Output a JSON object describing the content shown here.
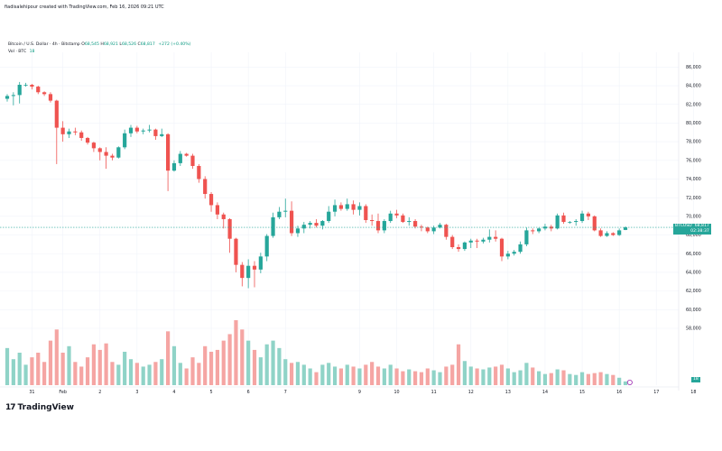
{
  "header": "fiadisalehipour created with TradingView.com, Feb 16, 2026 09:21 UTC",
  "legend": {
    "symbol": "Bitcoin / U.S. Dollar · 4h · Bitstamp",
    "o_label": "O",
    "o": "68,545",
    "h_label": "H",
    "h": "68,921",
    "l_label": "L",
    "l": "68,526",
    "c_label": "C",
    "c": "68,817",
    "change": "+272 (+0.40%)",
    "vol_label": "Vol · BTC",
    "vol_value": "18"
  },
  "price_label": {
    "symbol": "BTCUSD",
    "price": "68,817",
    "countdown": "02:38:37"
  },
  "volume_label": "18",
  "logo_text": "TradingView",
  "colors": {
    "up": "#26a69a",
    "down": "#ef5350",
    "up_vol": "#8fd3c7",
    "down_vol": "#f5a5a3",
    "grid": "#f0f3fa",
    "price_line": "#26a69a"
  },
  "chart_data": {
    "type": "candlestick",
    "ylim": [
      58000,
      87000
    ],
    "yticks": [
      "86,000",
      "84,000",
      "82,000",
      "80,000",
      "78,000",
      "76,000",
      "74,000",
      "72,000",
      "70,000",
      "68,000",
      "66,000",
      "64,000",
      "62,000",
      "60,000",
      "58,000"
    ],
    "ytick_values": [
      86000,
      84000,
      82000,
      80000,
      78000,
      76000,
      74000,
      72000,
      70000,
      68000,
      66000,
      64000,
      62000,
      60000,
      58000
    ],
    "xticks": [
      {
        "label": "31",
        "index": 4
      },
      {
        "label": "Feb",
        "index": 9
      },
      {
        "label": "2",
        "index": 15
      },
      {
        "label": "3",
        "index": 21
      },
      {
        "label": "4",
        "index": 27
      },
      {
        "label": "5",
        "index": 33
      },
      {
        "label": "6",
        "index": 39
      },
      {
        "label": "7",
        "index": 45
      },
      {
        "label": "9",
        "index": 57
      },
      {
        "label": "10",
        "index": 63
      },
      {
        "label": "11",
        "index": 69
      },
      {
        "label": "12",
        "index": 75
      },
      {
        "label": "13",
        "index": 81
      },
      {
        "label": "14",
        "index": 87
      },
      {
        "label": "15",
        "index": 93
      },
      {
        "label": "16",
        "index": 99
      },
      {
        "label": "17",
        "index": 105
      },
      {
        "label": "18",
        "index": 111
      }
    ],
    "candles": [
      [
        82600,
        83100,
        82300,
        82900,
        40
      ],
      [
        82900,
        83300,
        81900,
        83000,
        28
      ],
      [
        83000,
        84400,
        82100,
        84100,
        35
      ],
      [
        84100,
        84300,
        83900,
        84100,
        22
      ],
      [
        84100,
        84200,
        83600,
        83900,
        30
      ],
      [
        83900,
        84000,
        83100,
        83300,
        35
      ],
      [
        83300,
        83400,
        82900,
        83100,
        25
      ],
      [
        83100,
        83300,
        82200,
        82400,
        48
      ],
      [
        82400,
        82500,
        75600,
        79500,
        60
      ],
      [
        79500,
        80200,
        78000,
        78800,
        35
      ],
      [
        78800,
        79400,
        78400,
        79100,
        42
      ],
      [
        79100,
        79500,
        78700,
        79000,
        25
      ],
      [
        79000,
        79200,
        78100,
        78400,
        20
      ],
      [
        78400,
        78500,
        77700,
        77900,
        30
      ],
      [
        77900,
        78000,
        76900,
        77300,
        44
      ],
      [
        77300,
        77400,
        76000,
        76900,
        38
      ],
      [
        76900,
        77400,
        75100,
        76500,
        45
      ],
      [
        76500,
        76700,
        76000,
        76300,
        25
      ],
      [
        76300,
        77500,
        76200,
        77400,
        22
      ],
      [
        77400,
        79300,
        77200,
        78900,
        36
      ],
      [
        78900,
        79800,
        78500,
        79500,
        28
      ],
      [
        79500,
        79700,
        78900,
        79100,
        24
      ],
      [
        79100,
        79400,
        78800,
        79200,
        20
      ],
      [
        79200,
        79800,
        79000,
        79300,
        22
      ],
      [
        79300,
        79400,
        78200,
        78600,
        25
      ],
      [
        78600,
        79400,
        78500,
        78800,
        28
      ],
      [
        78800,
        78900,
        72700,
        74900,
        58
      ],
      [
        74900,
        76000,
        74800,
        75700,
        42
      ],
      [
        75700,
        77000,
        75400,
        76700,
        24
      ],
      [
        76700,
        76800,
        76400,
        76500,
        18
      ],
      [
        76500,
        76700,
        75100,
        75400,
        30
      ],
      [
        75400,
        75600,
        73600,
        74000,
        24
      ],
      [
        74000,
        74300,
        71900,
        72400,
        42
      ],
      [
        72400,
        72600,
        70500,
        71200,
        36
      ],
      [
        71200,
        71500,
        69700,
        70200,
        38
      ],
      [
        70200,
        70400,
        68700,
        69700,
        48
      ],
      [
        69700,
        69800,
        66100,
        67600,
        55
      ],
      [
        67600,
        67700,
        64000,
        64800,
        70
      ],
      [
        64800,
        65100,
        62500,
        63400,
        60
      ],
      [
        63400,
        65400,
        62300,
        64700,
        48
      ],
      [
        64700,
        65200,
        62400,
        64300,
        38
      ],
      [
        64300,
        66100,
        63900,
        65700,
        30
      ],
      [
        65700,
        68100,
        65200,
        67900,
        44
      ],
      [
        67900,
        70400,
        67700,
        69900,
        48
      ],
      [
        69900,
        71000,
        69700,
        70500,
        40
      ],
      [
        70500,
        71900,
        69900,
        70600,
        28
      ],
      [
        70600,
        71600,
        67900,
        68200,
        24
      ],
      [
        68200,
        69000,
        67800,
        68700,
        25
      ],
      [
        68700,
        69400,
        68200,
        69100,
        22
      ],
      [
        69100,
        69500,
        68700,
        69300,
        18
      ],
      [
        69300,
        69700,
        68800,
        69000,
        14
      ],
      [
        69000,
        69600,
        68600,
        69500,
        22
      ],
      [
        69500,
        71100,
        69300,
        70500,
        24
      ],
      [
        70500,
        71800,
        70000,
        71200,
        20
      ],
      [
        71200,
        71500,
        70600,
        70800,
        18
      ],
      [
        70800,
        71900,
        70600,
        71300,
        22
      ],
      [
        71300,
        71700,
        70200,
        70700,
        20
      ],
      [
        70700,
        71500,
        70100,
        71100,
        18
      ],
      [
        71100,
        71300,
        69300,
        69600,
        22
      ],
      [
        69600,
        70200,
        69000,
        69500,
        25
      ],
      [
        69500,
        70300,
        68200,
        68500,
        20
      ],
      [
        68500,
        69700,
        68200,
        69500,
        18
      ],
      [
        69500,
        70600,
        69300,
        70300,
        22
      ],
      [
        70300,
        70700,
        69800,
        70100,
        18
      ],
      [
        70100,
        70300,
        69300,
        69400,
        15
      ],
      [
        69400,
        69900,
        69000,
        69500,
        17
      ],
      [
        69500,
        69700,
        68700,
        68900,
        15
      ],
      [
        68900,
        69100,
        68400,
        68800,
        14
      ],
      [
        68800,
        68900,
        68200,
        68400,
        18
      ],
      [
        68400,
        69000,
        68100,
        68800,
        16
      ],
      [
        68800,
        69300,
        68700,
        69100,
        14
      ],
      [
        69100,
        69200,
        67500,
        67800,
        20
      ],
      [
        67800,
        68000,
        66500,
        66700,
        22
      ],
      [
        66700,
        67000,
        66200,
        66500,
        44
      ],
      [
        66500,
        67300,
        66300,
        67200,
        26
      ],
      [
        67200,
        67600,
        66600,
        67400,
        20
      ],
      [
        67400,
        67600,
        66600,
        67300,
        18
      ],
      [
        67300,
        67700,
        67100,
        67500,
        17
      ],
      [
        67500,
        68600,
        67200,
        67800,
        19
      ],
      [
        67800,
        68500,
        67300,
        67600,
        20
      ],
      [
        67600,
        67700,
        65200,
        65700,
        22
      ],
      [
        65700,
        66300,
        65400,
        66000,
        18
      ],
      [
        66000,
        66400,
        65800,
        66200,
        14
      ],
      [
        66200,
        67300,
        66000,
        67000,
        16
      ],
      [
        67000,
        68800,
        66800,
        68500,
        24
      ],
      [
        68500,
        68700,
        68100,
        68400,
        19
      ],
      [
        68400,
        68800,
        68200,
        68700,
        15
      ],
      [
        68700,
        69200,
        68500,
        68900,
        12
      ],
      [
        68900,
        69100,
        68400,
        68700,
        13
      ],
      [
        68700,
        70300,
        68600,
        70100,
        17
      ],
      [
        70100,
        70400,
        69200,
        69400,
        16
      ],
      [
        69400,
        69500,
        69200,
        69400,
        12
      ],
      [
        69400,
        69700,
        69000,
        69500,
        11
      ],
      [
        69500,
        70600,
        69300,
        70300,
        14
      ],
      [
        70300,
        70500,
        69600,
        70000,
        12
      ],
      [
        70000,
        70100,
        68400,
        68500,
        13
      ],
      [
        68500,
        68700,
        67800,
        67900,
        14
      ],
      [
        67900,
        68400,
        67800,
        68200,
        12
      ],
      [
        68200,
        68300,
        67900,
        68000,
        11
      ],
      [
        68000,
        68700,
        67900,
        68500,
        8
      ],
      [
        68545,
        68921,
        68526,
        68817,
        4
      ]
    ]
  }
}
